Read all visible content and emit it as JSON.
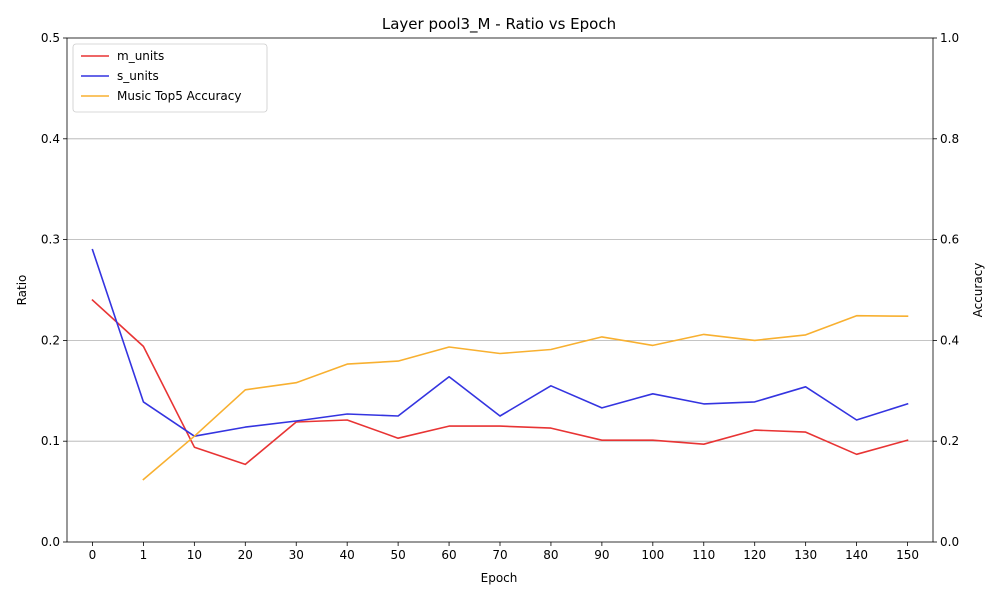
{
  "chart_data": {
    "type": "line",
    "title": "Layer pool3_M - Ratio vs Epoch",
    "xlabel": "Epoch",
    "ylabel": "Ratio",
    "ylabel_right": "Accuracy",
    "categories": [
      "0",
      "1",
      "10",
      "20",
      "30",
      "40",
      "50",
      "60",
      "70",
      "80",
      "90",
      "100",
      "110",
      "120",
      "130",
      "140",
      "150"
    ],
    "ylim": [
      0,
      0.5
    ],
    "ylim_right": [
      0,
      1.0
    ],
    "yticks": [
      "0.0",
      "0.1",
      "0.2",
      "0.3",
      "0.4",
      "0.5"
    ],
    "yticks_right": [
      "0.0",
      "0.2",
      "0.4",
      "0.6",
      "0.8",
      "1.0"
    ],
    "grid": "horizontal",
    "legend_position": "top-left",
    "series": [
      {
        "name": "m_units",
        "axis": "left",
        "color": "#e83434",
        "values": [
          0.24,
          0.194,
          0.094,
          0.077,
          0.119,
          0.121,
          0.103,
          0.115,
          0.115,
          0.113,
          0.101,
          0.101,
          0.097,
          0.111,
          0.109,
          0.087,
          0.101
        ]
      },
      {
        "name": "s_units",
        "axis": "left",
        "color": "#3434e0",
        "values": [
          0.29,
          0.139,
          0.105,
          0.114,
          0.12,
          0.127,
          0.125,
          0.164,
          0.125,
          0.155,
          0.133,
          0.147,
          0.137,
          0.139,
          0.154,
          0.121,
          0.137
        ]
      },
      {
        "name": "Music Top5 Accuracy",
        "axis": "right",
        "color": "#f8b030",
        "values": [
          null,
          0.124,
          0.21,
          0.302,
          0.316,
          0.353,
          0.359,
          0.387,
          0.374,
          0.382,
          0.407,
          0.39,
          0.412,
          0.4,
          0.411,
          0.449,
          0.448
        ]
      }
    ]
  }
}
